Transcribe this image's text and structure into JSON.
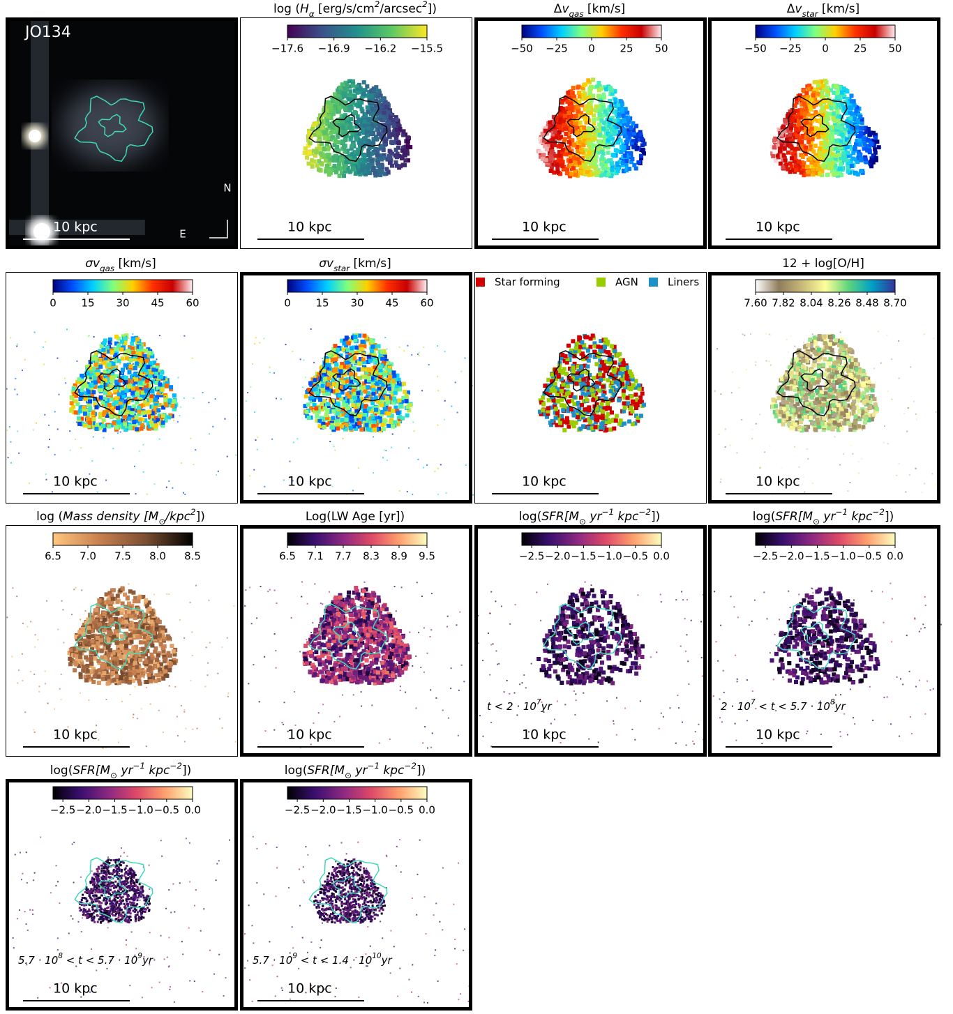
{
  "galaxy": "JO134",
  "panels": [
    {
      "label": "JO134",
      "compass": [
        "N",
        "E"
      ],
      "scale_label": "10 kpc",
      "contour": "#40d8b8",
      "border": "thick",
      "image": true
    },
    {
      "title": [
        "log (",
        {
          "text": "H",
          "style": "italic"
        },
        {
          "text": "α",
          "style": "sub"
        },
        " [erg/s/cm",
        {
          "text": "2",
          "style": "sup"
        },
        "/arcsec",
        {
          "text": "2",
          "style": "sup"
        },
        "])"
      ],
      "colorbar": {
        "lim": [
          -17.6,
          -15.5
        ],
        "ticks": [
          {
            "value": -17.6,
            "label": "−17.6"
          },
          {
            "value": -16.9,
            "label": "−16.9"
          },
          {
            "value": -16.2,
            "label": "−16.2"
          },
          {
            "value": -15.5,
            "label": "−15.5"
          }
        ],
        "colors": [
          "#440154",
          "#3b528b",
          "#21918c",
          "#5ec962",
          "#fde725"
        ]
      },
      "scale_label": "10 kpc",
      "contour": "#000000",
      "border": "thin"
    },
    {
      "title": [
        "Δ",
        {
          "text": "v",
          "style": "italic"
        },
        {
          "text": "gas",
          "style": "sub"
        },
        " [km/s]"
      ],
      "colorbar": {
        "lim": [
          -50,
          50
        ],
        "ticks": [
          {
            "value": -50,
            "label": "−50"
          },
          {
            "value": -25,
            "label": "−25"
          },
          0,
          25,
          50
        ],
        "colors": [
          "#000080",
          "#0050ff",
          "#00d0ff",
          "#7fff7f",
          "#ffd000",
          "#ff3000",
          "#c80000",
          "#fff0f0"
        ]
      },
      "scale_label": "10 kpc",
      "contour": "#000000",
      "border": "thick"
    },
    {
      "title": [
        "Δ",
        {
          "text": "v",
          "style": "italic"
        },
        {
          "text": "star",
          "style": "sub"
        },
        " [km/s]"
      ],
      "colorbar": {
        "lim": [
          -50,
          50
        ],
        "ticks": [
          {
            "value": -50,
            "label": "−50"
          },
          {
            "value": -25,
            "label": "−25"
          },
          0,
          25,
          50
        ],
        "colors": [
          "#000080",
          "#0050ff",
          "#00d0ff",
          "#7fff7f",
          "#ffd000",
          "#ff3000",
          "#c80000",
          "#fff0f0"
        ]
      },
      "scale_label": "10 kpc",
      "contour": "#000000",
      "border": "thick"
    },
    {
      "title": [
        {
          "text": "σv",
          "style": "italic"
        },
        {
          "text": "gas",
          "style": "sub"
        },
        " [km/s]"
      ],
      "colorbar": {
        "lim": [
          0,
          60
        ],
        "ticks": [
          0,
          15,
          30,
          45,
          60
        ],
        "colors": [
          "#000080",
          "#0050ff",
          "#00d0ff",
          "#7fff7f",
          "#ffd000",
          "#ff3000",
          "#c80000",
          "#fff0f0"
        ]
      },
      "scale_label": "10 kpc",
      "contour": "#000000",
      "border": "thin"
    },
    {
      "title": [
        {
          "text": "σv",
          "style": "italic"
        },
        {
          "text": "star",
          "style": "sub"
        },
        " [km/s]"
      ],
      "colorbar": {
        "lim": [
          0,
          60
        ],
        "ticks": [
          0,
          15,
          30,
          45,
          60
        ],
        "colors": [
          "#000080",
          "#0050ff",
          "#00d0ff",
          "#7fff7f",
          "#ffd000",
          "#ff3000",
          "#c80000",
          "#fff0f0"
        ]
      },
      "scale_label": "10 kpc",
      "contour": "#000000",
      "border": "thick"
    },
    {
      "legend": [
        {
          "name": "Star forming",
          "color": "#d00000"
        },
        {
          "name": "AGN",
          "color": "#9acd00"
        },
        {
          "name": "Liners",
          "color": "#1e90c8"
        }
      ],
      "scale_label": "10 kpc",
      "contour": "#000000",
      "border": "thin"
    },
    {
      "title": [
        "12 + log[O/H]"
      ],
      "colorbar": {
        "lim": [
          7.6,
          8.7
        ],
        "ticks": [
          {
            "value": 7.6,
            "label": "7.60"
          },
          {
            "value": 7.82,
            "label": "7.82"
          },
          {
            "value": 8.04,
            "label": "8.04"
          },
          {
            "value": 8.26,
            "label": "8.26"
          },
          {
            "value": 8.48,
            "label": "8.48"
          },
          {
            "value": 8.7,
            "label": "8.70"
          }
        ],
        "colors": [
          "#ffffff",
          "#8f7d5c",
          "#c8b97a",
          "#ffff99",
          "#5fd47d",
          "#00a0c8",
          "#333399"
        ]
      },
      "scale_label": "10 kpc",
      "contour": "#000000",
      "border": "thick"
    },
    {
      "title": [
        "log (",
        {
          "text": "Mass density [M",
          "style": "italic"
        },
        {
          "text": "⊙",
          "style": "sub"
        },
        {
          "text": "/kpc",
          "style": "italic"
        },
        {
          "text": "2",
          "style": "sup"
        },
        "])"
      ],
      "colorbar": {
        "lim": [
          6.5,
          8.5
        ],
        "ticks": [
          6.5,
          {
            "value": 7,
            "label": "7.0"
          },
          7.5,
          {
            "value": 8,
            "label": "8.0"
          },
          8.5
        ],
        "colors": [
          "#ffc77f",
          "#c88050",
          "#7a4e32",
          "#000000"
        ]
      },
      "scale_label": "10 kpc",
      "contour": "#40d8b8",
      "border": "thin"
    },
    {
      "title": [
        "Log(LW Age [yr])"
      ],
      "colorbar": {
        "lim": [
          6.5,
          9.5
        ],
        "ticks": [
          6.5,
          7.1,
          7.7,
          8.3,
          8.9,
          9.5
        ],
        "colors": [
          "#000004",
          "#3b0f70",
          "#8c2981",
          "#de4968",
          "#fe9f6d",
          "#fcfdbf"
        ]
      },
      "scale_label": "10 kpc",
      "contour": "#40d8b8",
      "border": "thick"
    },
    {
      "title": [
        "log(",
        {
          "text": "SFR[M",
          "style": "italic"
        },
        {
          "text": "⊙",
          "style": "sub"
        },
        {
          "text": " yr",
          "style": "italic"
        },
        {
          "text": "−1",
          "style": "sup"
        },
        {
          "text": " kpc",
          "style": "italic"
        },
        {
          "text": "−2",
          "style": "sup"
        },
        "])"
      ],
      "colorbar": {
        "lim": [
          -2.69,
          0
        ],
        "ticks": [
          {
            "value": -2.5,
            "label": "−2.5"
          },
          {
            "value": -2,
            "label": "−2.0"
          },
          {
            "value": -1.5,
            "label": "−1.5"
          },
          {
            "value": -1,
            "label": "−1.0"
          },
          {
            "value": -0.5,
            "label": "−0.5"
          },
          {
            "value": 0,
            "label": "0.0"
          }
        ],
        "colors": [
          "#000004",
          "#3b0f70",
          "#8c2981",
          "#de4968",
          "#fe9f6d",
          "#fcfdbf"
        ]
      },
      "annotation": [
        {
          "text": "t < 2 · 10",
          "style": "italic"
        },
        {
          "text": "7",
          "style": "sup"
        },
        {
          "text": "yr",
          "style": "italic"
        }
      ],
      "scale_label": "10 kpc",
      "contour": "#40d8b8",
      "border": "thick"
    },
    {
      "title": [
        "log(",
        {
          "text": "SFR[M",
          "style": "italic"
        },
        {
          "text": "⊙",
          "style": "sub"
        },
        {
          "text": " yr",
          "style": "italic"
        },
        {
          "text": "−1",
          "style": "sup"
        },
        {
          "text": " kpc",
          "style": "italic"
        },
        {
          "text": "−2",
          "style": "sup"
        },
        "])"
      ],
      "colorbar": {
        "lim": [
          -2.69,
          0
        ],
        "ticks": [
          {
            "value": -2.5,
            "label": "−2.5"
          },
          {
            "value": -2,
            "label": "−2.0"
          },
          {
            "value": -1.5,
            "label": "−1.5"
          },
          {
            "value": -1,
            "label": "−1.0"
          },
          {
            "value": -0.5,
            "label": "−0.5"
          },
          {
            "value": 0,
            "label": "0.0"
          }
        ],
        "colors": [
          "#000004",
          "#3b0f70",
          "#8c2981",
          "#de4968",
          "#fe9f6d",
          "#fcfdbf"
        ]
      },
      "annotation": [
        {
          "text": "2 · 10",
          "style": "italic"
        },
        {
          "text": "7",
          "style": "sup"
        },
        {
          "text": " < t < 5.7 · 10",
          "style": "italic"
        },
        {
          "text": "8",
          "style": "sup"
        },
        {
          "text": "yr",
          "style": "italic"
        }
      ],
      "scale_label": "10 kpc",
      "contour": "#40d8b8",
      "border": "thick"
    },
    {
      "title": [
        "log(",
        {
          "text": "SFR[M",
          "style": "italic"
        },
        {
          "text": "⊙",
          "style": "sub"
        },
        {
          "text": " yr",
          "style": "italic"
        },
        {
          "text": "−1",
          "style": "sup"
        },
        {
          "text": " kpc",
          "style": "italic"
        },
        {
          "text": "−2",
          "style": "sup"
        },
        "])"
      ],
      "colorbar": {
        "lim": [
          -2.69,
          0
        ],
        "ticks": [
          {
            "value": -2.5,
            "label": "−2.5"
          },
          {
            "value": -2,
            "label": "−2.0"
          },
          {
            "value": -1.5,
            "label": "−1.5"
          },
          {
            "value": -1,
            "label": "−1.0"
          },
          {
            "value": -0.5,
            "label": "−0.5"
          },
          {
            "value": 0,
            "label": "0.0"
          }
        ],
        "colors": [
          "#000004",
          "#3b0f70",
          "#8c2981",
          "#de4968",
          "#fe9f6d",
          "#fcfdbf"
        ]
      },
      "annotation": [
        {
          "text": "5.7 · 10",
          "style": "italic"
        },
        {
          "text": "8",
          "style": "sup"
        },
        {
          "text": " < t < 5.7 · 10",
          "style": "italic"
        },
        {
          "text": "9",
          "style": "sup"
        },
        {
          "text": "yr",
          "style": "italic"
        }
      ],
      "scale_label": "10 kpc",
      "contour": "#40d8b8",
      "border": "thick"
    },
    {
      "title": [
        "log(",
        {
          "text": "SFR[M",
          "style": "italic"
        },
        {
          "text": "⊙",
          "style": "sub"
        },
        {
          "text": " yr",
          "style": "italic"
        },
        {
          "text": "−1",
          "style": "sup"
        },
        {
          "text": " kpc",
          "style": "italic"
        },
        {
          "text": "−2",
          "style": "sup"
        },
        "])"
      ],
      "colorbar": {
        "lim": [
          -2.69,
          0
        ],
        "ticks": [
          {
            "value": -2.5,
            "label": "−2.5"
          },
          {
            "value": -2,
            "label": "−2.0"
          },
          {
            "value": -1.5,
            "label": "−1.5"
          },
          {
            "value": -1,
            "label": "−1.0"
          },
          {
            "value": -0.5,
            "label": "−0.5"
          },
          {
            "value": 0,
            "label": "0.0"
          }
        ],
        "colors": [
          "#000004",
          "#3b0f70",
          "#8c2981",
          "#de4968",
          "#fe9f6d",
          "#fcfdbf"
        ]
      },
      "annotation": [
        {
          "text": "5.7 · 10",
          "style": "italic"
        },
        {
          "text": "9",
          "style": "sup"
        },
        {
          "text": " < t < 1.4 · 10",
          "style": "italic"
        },
        {
          "text": "10",
          "style": "sup"
        },
        {
          "text": "yr",
          "style": "italic"
        }
      ],
      "scale_label": "10 kpc",
      "contour": "#40d8b8",
      "border": "thick"
    }
  ]
}
